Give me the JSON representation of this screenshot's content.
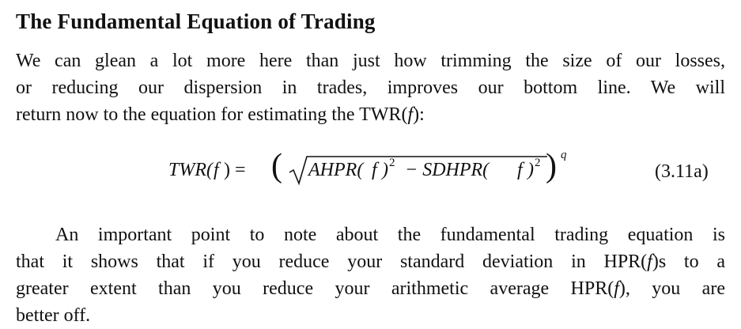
{
  "heading": "The Fundamental Equation of Trading",
  "paragraphs": [
    {
      "lines": [
        [
          {
            "text": "We can glean a lot more here than just how trimming the size of our losses,"
          }
        ],
        [
          {
            "text": "or reducing our dispersion in trades, improves our bottom line. We will"
          }
        ],
        [
          {
            "text": "return now to the equation for estimating the TWR("
          },
          {
            "text": "f",
            "style": "italic"
          },
          {
            "text": "):"
          }
        ]
      ]
    },
    {
      "indent": true,
      "lines": [
        [
          {
            "text": "An important point to note about the fundamental trading equation is"
          }
        ],
        [
          {
            "text": "that it shows that if you reduce your standard deviation in HPR("
          },
          {
            "text": "f",
            "style": "italic"
          },
          {
            "text": ")s to a"
          }
        ],
        [
          {
            "text": "greater extent than you reduce your arithmetic average HPR("
          },
          {
            "text": "f",
            "style": "italic"
          },
          {
            "text": "), you are"
          }
        ],
        [
          {
            "text": "better off."
          }
        ]
      ]
    }
  ],
  "equation": {
    "tokens": [
      "TWR(",
      "f",
      ") =",
      "(",
      "AHPR(",
      "f",
      ")",
      "2",
      "− SDHPR(",
      "f",
      ")",
      "2",
      ")",
      "q"
    ],
    "number": "(3.11a)"
  }
}
